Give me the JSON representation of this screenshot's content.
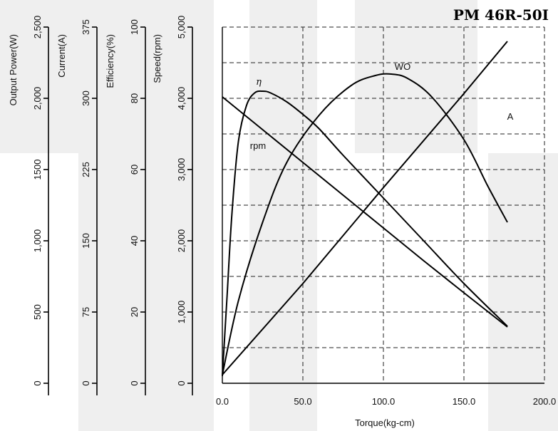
{
  "chart_data": {
    "type": "line",
    "title": "PM 46R-50I",
    "xlabel": "Torque(kg-cm)",
    "xlim": [
      0,
      200
    ],
    "x_ticks": [
      "0.0",
      "50.0",
      "100.0",
      "150.0",
      "200.0"
    ],
    "grid": true,
    "y_axes": [
      {
        "label": "Output Power(W)",
        "range": [
          0,
          2500
        ],
        "ticks": [
          "0",
          "500",
          "1,000",
          "1500",
          "2,000",
          "2,500"
        ]
      },
      {
        "label": "Current(A)",
        "range": [
          0,
          375
        ],
        "ticks": [
          "0",
          "75",
          "150",
          "225",
          "300",
          "375"
        ]
      },
      {
        "label": "Efficiency(%)",
        "range": [
          0,
          100
        ],
        "ticks": [
          "0",
          "20",
          "40",
          "60",
          "80",
          "100"
        ]
      },
      {
        "label": "Speed(rpm)",
        "range": [
          0,
          5000
        ],
        "ticks": [
          "0",
          "1,000",
          "2,000",
          "3,000",
          "4,000",
          "5,000"
        ]
      }
    ],
    "series": [
      {
        "name": "rpm",
        "axis": "Speed(rpm)",
        "points": [
          [
            0,
            4020
          ],
          [
            25,
            3560
          ],
          [
            50,
            3100
          ],
          [
            75,
            2640
          ],
          [
            100,
            2180
          ],
          [
            125,
            1720
          ],
          [
            150,
            1270
          ],
          [
            177,
            790
          ]
        ]
      },
      {
        "name": "η",
        "axis": "Efficiency(%)",
        "points": [
          [
            0,
            2
          ],
          [
            3,
            25
          ],
          [
            6,
            48
          ],
          [
            10,
            68
          ],
          [
            15,
            78
          ],
          [
            20,
            81.5
          ],
          [
            25,
            82
          ],
          [
            30,
            81.5
          ],
          [
            40,
            79
          ],
          [
            50,
            75.5
          ],
          [
            60,
            71.5
          ],
          [
            75,
            64
          ],
          [
            100,
            52
          ],
          [
            125,
            40
          ],
          [
            150,
            28
          ],
          [
            177,
            16
          ]
        ]
      },
      {
        "name": "WO",
        "axis": "Output Power(W)",
        "points": [
          [
            0,
            60
          ],
          [
            10,
            580
          ],
          [
            25,
            1130
          ],
          [
            40,
            1550
          ],
          [
            60,
            1880
          ],
          [
            80,
            2090
          ],
          [
            95,
            2160
          ],
          [
            105,
            2170
          ],
          [
            115,
            2140
          ],
          [
            130,
            2010
          ],
          [
            150,
            1710
          ],
          [
            165,
            1380
          ],
          [
            177,
            1130
          ]
        ]
      },
      {
        "name": "A",
        "axis": "Current(A)",
        "points": [
          [
            0,
            9
          ],
          [
            50,
            105
          ],
          [
            100,
            206
          ],
          [
            150,
            305
          ],
          [
            177,
            360
          ]
        ]
      }
    ]
  }
}
